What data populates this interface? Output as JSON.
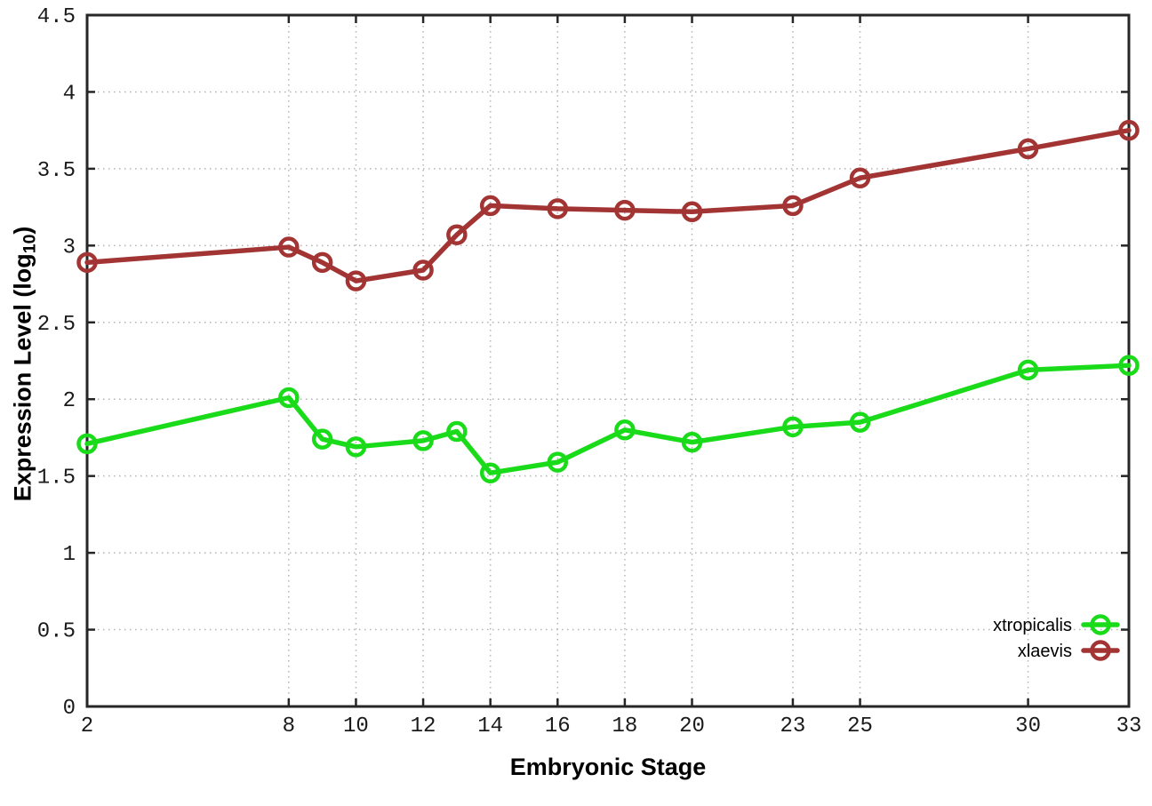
{
  "figure": {
    "background": "#ffffff"
  },
  "chart_data": {
    "type": "line",
    "title": "",
    "xlabel": "Embryonic Stage",
    "ylabel_pre": "Expression Level (log",
    "ylabel_sub": "10",
    "ylabel_post": ")",
    "x": [
      2,
      8,
      9,
      10,
      12,
      13,
      14,
      16,
      18,
      20,
      23,
      25,
      30,
      33
    ],
    "series": [
      {
        "name": "xtropicalis",
        "color": "#1adb1a",
        "values": [
          1.71,
          2.01,
          1.74,
          1.69,
          1.73,
          1.79,
          1.52,
          1.59,
          1.8,
          1.72,
          1.82,
          1.85,
          2.19,
          2.22
        ]
      },
      {
        "name": "xlaevis",
        "color": "#a33434",
        "values": [
          2.89,
          2.99,
          2.89,
          2.77,
          2.84,
          3.07,
          3.26,
          3.24,
          3.23,
          3.22,
          3.26,
          3.44,
          3.63,
          3.75
        ]
      }
    ],
    "xlim": [
      2,
      33
    ],
    "ylim": [
      0,
      4.5
    ],
    "xtick_values": [
      2,
      8,
      10,
      12,
      14,
      16,
      18,
      20,
      23,
      25,
      30,
      33
    ],
    "xtick_labels": [
      "2",
      "8",
      "10",
      "12",
      "14",
      "16",
      "18",
      "20",
      "23",
      "25",
      "30",
      "33"
    ],
    "ytick_values": [
      0,
      0.5,
      1,
      1.5,
      2,
      2.5,
      3,
      3.5,
      4,
      4.5
    ],
    "ytick_labels": [
      "0",
      "0.5",
      "1",
      "1.5",
      "2",
      "2.5",
      "3",
      "3.5",
      "4",
      "4.5"
    ],
    "grid": true,
    "legend_position": "bottom-right",
    "marker": "open-circle",
    "colors": {
      "grid": "#b3b3b3",
      "border": "#262626",
      "text": "#000000"
    }
  }
}
